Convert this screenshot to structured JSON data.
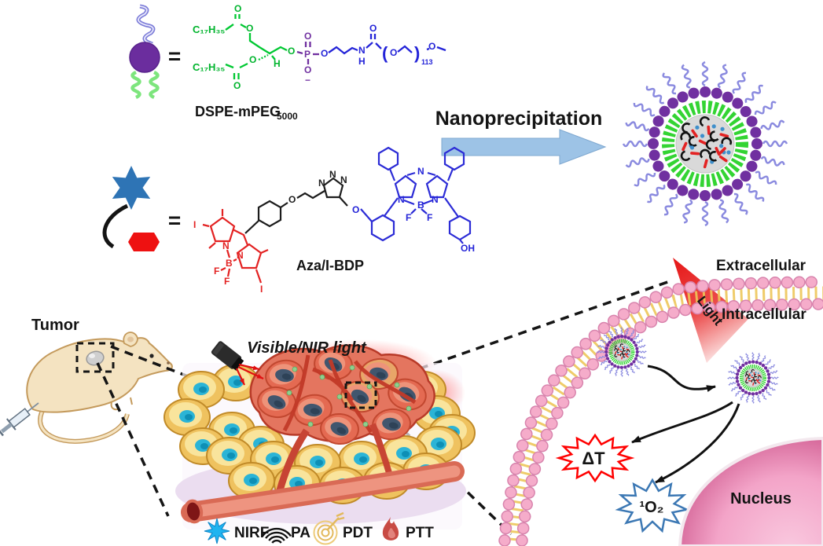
{
  "scheme": {
    "equals": "=",
    "nanoprecipitation_label": "Nanoprecipitation",
    "dspe": {
      "label_main": "DSPE-mPEG",
      "label_sub": "5000",
      "alkyl1": "C₁₇H₃₅",
      "alkyl2": "C₁₇H₃₅",
      "peg_repeat": "113",
      "lparen": "(",
      "rparen": ")"
    },
    "azabdp": {
      "label": "Aza/I-BDP"
    },
    "atoms": {
      "O": "O",
      "P": "P",
      "N": "N",
      "H": "H",
      "B": "B",
      "F": "F",
      "I": "I",
      "OH": "OH",
      "minus": "−"
    }
  },
  "in_vivo": {
    "tumor_label": "Tumor",
    "light_source_label": "Visible/NIR light"
  },
  "cell_panel": {
    "extracellular_label": "Extracellular",
    "intracellular_label": "Intracellular",
    "beam_label": "Light",
    "heat_label": "ΔT",
    "singlet_oxygen_label": "¹O₂",
    "nucleus_label": "Nucleus"
  },
  "legend": {
    "items": [
      {
        "icon": "nirf-burst-icon",
        "label": "NIRF",
        "color": "#1FB4F0"
      },
      {
        "icon": "pa-waves-icon",
        "label": "PA",
        "color": "#1c1c1c"
      },
      {
        "icon": "pdt-target-icon",
        "label": "PDT",
        "color": "#E3B95C"
      },
      {
        "icon": "ptt-flame-icon",
        "label": "PTT",
        "color": "#C84B44"
      }
    ]
  },
  "colors": {
    "polymer_head_purple": "#6B2D9E",
    "peg_coil_blue": "#8A8ADF",
    "lipid_green": "#4FD44F",
    "chem_green": "#00C832",
    "chem_blue": "#2424D8",
    "chem_purple": "#7030A0",
    "bodipy_red": "#E32222",
    "star_blue": "#2E74B5",
    "process_arrow_blue": "#9DC3E6",
    "membrane_pink": "#F5ACCA",
    "nucleus_pink": "#EE8FBA",
    "beam_red": "#E51010",
    "cell_yellow": "#EFC25F",
    "nucleus_teal": "#2BB4D6"
  }
}
